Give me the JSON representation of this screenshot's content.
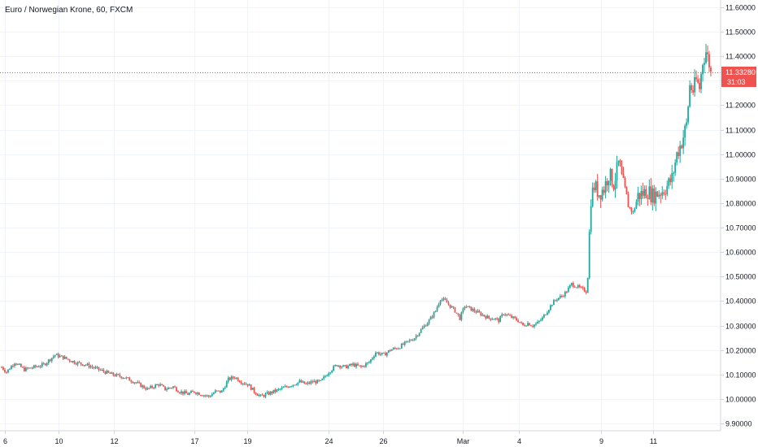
{
  "header": {
    "title": "Euro / Norwegian Krone, 60, FXCM"
  },
  "colors": {
    "up": "#26a69a",
    "down": "#ef5350",
    "grid": "#f0f3fa",
    "axis_border": "#d1d4dc",
    "text": "#131722",
    "price_line": "#ef5350"
  },
  "chart_data": {
    "type": "candlestick",
    "title": "Euro / Norwegian Krone, 60, FXCM",
    "x_ticks": [
      "6",
      "10",
      "12",
      "17",
      "19",
      "24",
      "26",
      "Mar",
      "4",
      "9",
      "11"
    ],
    "y_ticks": [
      "11.60000",
      "11.50000",
      "11.40000",
      "11.30000",
      "11.20000",
      "11.10000",
      "11.00000",
      "10.90000",
      "10.80000",
      "10.70000",
      "10.60000",
      "10.50000",
      "10.40000",
      "10.30000",
      "10.20000",
      "10.10000",
      "10.00000",
      "9.90000"
    ],
    "ylim": [
      9.87,
      11.63
    ],
    "grid": true,
    "last_price": "11.33280",
    "last_price_value": 11.3328,
    "countdown": "31:03",
    "close_path": [
      [
        0,
        10.13
      ],
      [
        3,
        10.11
      ],
      [
        8,
        10.15
      ],
      [
        14,
        10.12
      ],
      [
        20,
        10.13
      ],
      [
        26,
        10.14
      ],
      [
        33,
        10.18
      ],
      [
        38,
        10.17
      ],
      [
        45,
        10.15
      ],
      [
        52,
        10.14
      ],
      [
        60,
        10.12
      ],
      [
        68,
        10.1
      ],
      [
        75,
        10.09
      ],
      [
        82,
        10.07
      ],
      [
        90,
        10.04
      ],
      [
        97,
        10.06
      ],
      [
        101,
        10.04
      ],
      [
        106,
        10.05
      ],
      [
        110,
        10.03
      ],
      [
        115,
        10.02
      ],
      [
        119,
        10.03
      ],
      [
        123,
        10.02
      ],
      [
        128,
        10.01
      ],
      [
        132,
        10.03
      ],
      [
        136,
        10.03
      ],
      [
        140,
        10.08
      ],
      [
        144,
        10.09
      ],
      [
        148,
        10.07
      ],
      [
        152,
        10.06
      ],
      [
        156,
        10.03
      ],
      [
        160,
        10.01
      ],
      [
        164,
        10.02
      ],
      [
        168,
        10.03
      ],
      [
        172,
        10.04
      ],
      [
        176,
        10.05
      ],
      [
        180,
        10.06
      ],
      [
        184,
        10.07
      ],
      [
        188,
        10.06
      ],
      [
        192,
        10.07
      ],
      [
        197,
        10.07
      ],
      [
        202,
        10.11
      ],
      [
        207,
        10.14
      ],
      [
        212,
        10.13
      ],
      [
        217,
        10.14
      ],
      [
        222,
        10.13
      ],
      [
        227,
        10.15
      ],
      [
        231,
        10.19
      ],
      [
        236,
        10.18
      ],
      [
        240,
        10.2
      ],
      [
        245,
        10.21
      ],
      [
        250,
        10.23
      ],
      [
        255,
        10.25
      ],
      [
        260,
        10.29
      ],
      [
        264,
        10.32
      ],
      [
        268,
        10.36
      ],
      [
        271,
        10.41
      ],
      [
        274,
        10.4
      ],
      [
        277,
        10.38
      ],
      [
        280,
        10.36
      ],
      [
        283,
        10.33
      ],
      [
        286,
        10.38
      ],
      [
        289,
        10.37
      ],
      [
        292,
        10.36
      ],
      [
        295,
        10.35
      ],
      [
        298,
        10.34
      ],
      [
        301,
        10.33
      ],
      [
        304,
        10.33
      ],
      [
        307,
        10.32
      ],
      [
        310,
        10.35
      ],
      [
        313,
        10.34
      ],
      [
        316,
        10.33
      ],
      [
        319,
        10.32
      ],
      [
        322,
        10.3
      ],
      [
        325,
        10.31
      ],
      [
        328,
        10.3
      ],
      [
        331,
        10.31
      ],
      [
        334,
        10.33
      ],
      [
        337,
        10.36
      ],
      [
        340,
        10.39
      ],
      [
        343,
        10.41
      ],
      [
        346,
        10.42
      ],
      [
        349,
        10.44
      ],
      [
        352,
        10.47
      ],
      [
        355,
        10.46
      ],
      [
        358,
        10.45
      ],
      [
        361,
        10.44
      ],
      [
        362,
        10.5
      ],
      [
        363,
        10.68
      ],
      [
        364,
        10.82
      ],
      [
        366,
        10.87
      ],
      [
        369,
        10.84
      ],
      [
        372,
        10.86
      ],
      [
        375,
        10.92
      ],
      [
        378,
        10.88
      ],
      [
        381,
        10.96
      ],
      [
        384,
        10.87
      ],
      [
        387,
        10.79
      ],
      [
        390,
        10.76
      ],
      [
        393,
        10.83
      ],
      [
        396,
        10.84
      ],
      [
        399,
        10.85
      ],
      [
        402,
        10.83
      ],
      [
        405,
        10.84
      ],
      [
        408,
        10.85
      ],
      [
        411,
        10.87
      ],
      [
        414,
        10.9
      ],
      [
        417,
        11.0
      ],
      [
        420,
        11.05
      ],
      [
        423,
        11.12
      ],
      [
        425,
        11.28
      ],
      [
        427,
        11.26
      ],
      [
        429,
        11.3
      ],
      [
        431,
        11.27
      ],
      [
        433,
        11.38
      ],
      [
        435,
        11.42
      ],
      [
        437,
        11.37
      ],
      [
        438,
        11.33
      ]
    ]
  }
}
